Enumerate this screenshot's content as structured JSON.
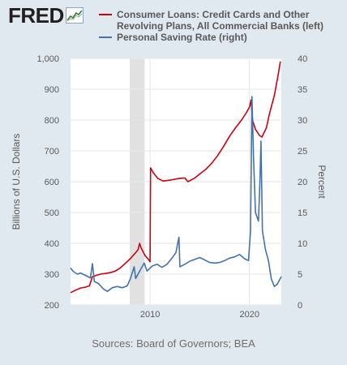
{
  "logo": {
    "text": "FRED"
  },
  "legend": [
    {
      "label": "Consumer Loans: Credit Cards and Other Revolving Plans, All Commercial Banks (left)",
      "color": "#cc0011"
    },
    {
      "label": "Personal Saving Rate (right)",
      "color": "#4572a7"
    }
  ],
  "sources": "Sources: Board of Governors; BEA",
  "chart_data": {
    "type": "line",
    "left_axis": {
      "label": "Billions of U.S. Dollars",
      "ylim": [
        200,
        1000
      ],
      "ticks": [
        200,
        300,
        400,
        500,
        600,
        700,
        800,
        900,
        1000
      ],
      "tick_labels": [
        "200",
        "300",
        "400",
        "500",
        "600",
        "700",
        "800",
        "900",
        "1,000"
      ]
    },
    "right_axis": {
      "label": "Percent",
      "ylim": [
        0,
        40
      ],
      "ticks": [
        0,
        5,
        10,
        15,
        20,
        25,
        30,
        35,
        40
      ],
      "tick_labels": [
        "0",
        "5",
        "10",
        "15",
        "20",
        "25",
        "30",
        "35",
        "40"
      ]
    },
    "x_axis": {
      "xlim": [
        2002.0,
        2023.2
      ],
      "ticks": [
        2010,
        2020
      ],
      "tick_labels": [
        "2010",
        "2020"
      ]
    },
    "grid": true,
    "recession": [
      [
        2007.95,
        2009.45
      ]
    ],
    "series": [
      {
        "name": "Consumer Loans: Credit Cards and Other Revolving Plans, All Commercial Banks (left)",
        "color": "#cc0011",
        "axis": "left",
        "points": [
          [
            2002.0,
            240
          ],
          [
            2002.5,
            248
          ],
          [
            2003.0,
            255
          ],
          [
            2003.5,
            258
          ],
          [
            2003.9,
            262
          ],
          [
            2004.2,
            292
          ],
          [
            2004.6,
            296
          ],
          [
            2005.0,
            300
          ],
          [
            2005.5,
            302
          ],
          [
            2006.0,
            305
          ],
          [
            2006.5,
            310
          ],
          [
            2007.0,
            320
          ],
          [
            2007.5,
            335
          ],
          [
            2008.0,
            350
          ],
          [
            2008.5,
            368
          ],
          [
            2008.8,
            380
          ],
          [
            2008.95,
            400
          ],
          [
            2009.1,
            385
          ],
          [
            2009.5,
            360
          ],
          [
            2009.9,
            345
          ],
          [
            2010.0,
            340
          ],
          [
            2010.05,
            645
          ],
          [
            2010.3,
            630
          ],
          [
            2010.8,
            610
          ],
          [
            2011.3,
            602
          ],
          [
            2012.0,
            605
          ],
          [
            2012.8,
            610
          ],
          [
            2013.5,
            612
          ],
          [
            2013.8,
            600
          ],
          [
            2014.5,
            612
          ],
          [
            2015.0,
            625
          ],
          [
            2015.6,
            640
          ],
          [
            2016.2,
            660
          ],
          [
            2016.8,
            685
          ],
          [
            2017.4,
            715
          ],
          [
            2018.0,
            748
          ],
          [
            2018.6,
            775
          ],
          [
            2019.2,
            800
          ],
          [
            2019.7,
            825
          ],
          [
            2020.0,
            843
          ],
          [
            2020.15,
            865
          ],
          [
            2020.3,
            800
          ],
          [
            2020.6,
            770
          ],
          [
            2021.0,
            750
          ],
          [
            2021.25,
            745
          ],
          [
            2021.7,
            775
          ],
          [
            2022.0,
            820
          ],
          [
            2022.5,
            880
          ],
          [
            2022.9,
            950
          ],
          [
            2023.1,
            990
          ]
        ]
      },
      {
        "name": "Personal Saving Rate (right)",
        "color": "#4572a7",
        "axis": "right",
        "points": [
          [
            2002.0,
            6.0
          ],
          [
            2002.3,
            5.4
          ],
          [
            2002.7,
            5.0
          ],
          [
            2003.0,
            5.2
          ],
          [
            2003.5,
            4.8
          ],
          [
            2004.0,
            4.4
          ],
          [
            2004.2,
            6.7
          ],
          [
            2004.4,
            3.8
          ],
          [
            2004.8,
            3.5
          ],
          [
            2005.3,
            2.6
          ],
          [
            2005.7,
            2.2
          ],
          [
            2006.2,
            2.8
          ],
          [
            2006.7,
            3.0
          ],
          [
            2007.2,
            2.8
          ],
          [
            2007.7,
            3.1
          ],
          [
            2008.0,
            4.2
          ],
          [
            2008.4,
            6.2
          ],
          [
            2008.55,
            4.3
          ],
          [
            2009.0,
            5.6
          ],
          [
            2009.4,
            6.8
          ],
          [
            2009.7,
            5.5
          ],
          [
            2010.2,
            6.3
          ],
          [
            2010.7,
            6.6
          ],
          [
            2011.2,
            6.1
          ],
          [
            2011.7,
            6.6
          ],
          [
            2012.2,
            7.6
          ],
          [
            2012.6,
            8.5
          ],
          [
            2012.9,
            11.0
          ],
          [
            2013.0,
            6.2
          ],
          [
            2013.5,
            6.6
          ],
          [
            2014.0,
            7.1
          ],
          [
            2014.5,
            7.4
          ],
          [
            2015.0,
            7.7
          ],
          [
            2015.5,
            7.3
          ],
          [
            2016.0,
            6.9
          ],
          [
            2016.5,
            6.8
          ],
          [
            2017.0,
            6.9
          ],
          [
            2017.5,
            7.2
          ],
          [
            2018.0,
            7.6
          ],
          [
            2018.5,
            7.8
          ],
          [
            2019.0,
            8.2
          ],
          [
            2019.5,
            7.5
          ],
          [
            2019.9,
            7.2
          ],
          [
            2020.1,
            12.0
          ],
          [
            2020.25,
            33.8
          ],
          [
            2020.4,
            24.0
          ],
          [
            2020.6,
            15.0
          ],
          [
            2020.9,
            13.6
          ],
          [
            2021.05,
            20.0
          ],
          [
            2021.15,
            26.6
          ],
          [
            2021.3,
            12.0
          ],
          [
            2021.6,
            9.0
          ],
          [
            2021.9,
            7.2
          ],
          [
            2022.2,
            4.2
          ],
          [
            2022.5,
            3.0
          ],
          [
            2022.8,
            3.4
          ],
          [
            2023.0,
            4.0
          ],
          [
            2023.2,
            4.6
          ]
        ]
      }
    ]
  }
}
